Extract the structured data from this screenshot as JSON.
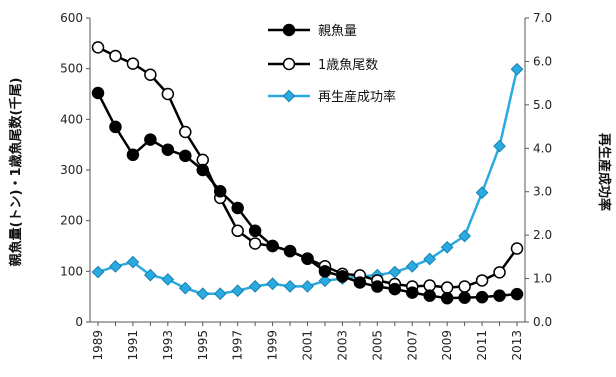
{
  "chart_data": {
    "type": "line",
    "title": "",
    "xlabel": "",
    "ylabel_left": "親魚量(トン)・1歳魚尾数(千尾)",
    "ylabel_right": "再生産成功率",
    "ylim_left": [
      0,
      600
    ],
    "ylim_right": [
      0.0,
      7.0
    ],
    "yticks_left": [
      "0",
      "100",
      "200",
      "300",
      "400",
      "500",
      "600"
    ],
    "yticks_right": [
      "0.0",
      "1.0",
      "2.0",
      "3.0",
      "4.0",
      "5.0",
      "6.0",
      "7.0"
    ],
    "x": [
      1989,
      1990,
      1991,
      1992,
      1993,
      1994,
      1995,
      1996,
      1997,
      1998,
      1999,
      2000,
      2001,
      2002,
      2003,
      2004,
      2005,
      2006,
      2007,
      2008,
      2009,
      2010,
      2011,
      2012,
      2013
    ],
    "xtick_labels": [
      "1989",
      "1991",
      "1993",
      "1995",
      "1997",
      "1999",
      "2001",
      "2003",
      "2005",
      "2007",
      "2009",
      "2011",
      "2013"
    ],
    "legend_position": "top-center",
    "grid": false,
    "series": [
      {
        "name": "親魚量",
        "axis": "left",
        "marker": "filled-circle",
        "color": "#000000",
        "values": [
          452,
          385,
          330,
          360,
          340,
          328,
          300,
          258,
          225,
          180,
          150,
          140,
          125,
          100,
          90,
          78,
          70,
          65,
          58,
          52,
          47,
          48,
          49,
          52,
          55
        ]
      },
      {
        "name": "1歳魚尾数",
        "axis": "left",
        "marker": "open-circle",
        "color": "#000000",
        "values": [
          542,
          525,
          510,
          488,
          450,
          375,
          320,
          245,
          180,
          155,
          150,
          140,
          125,
          110,
          95,
          92,
          82,
          75,
          70,
          72,
          68,
          70,
          82,
          98,
          145
        ]
      },
      {
        "name": "再生産成功率",
        "axis": "right",
        "marker": "diamond",
        "color": "#29abe2",
        "values": [
          1.15,
          1.28,
          1.38,
          1.08,
          0.98,
          0.78,
          0.65,
          0.65,
          0.72,
          0.82,
          0.88,
          0.82,
          0.82,
          0.95,
          1.0,
          1.05,
          1.08,
          1.15,
          1.28,
          1.45,
          1.72,
          1.98,
          2.98,
          4.05,
          5.82
        ]
      }
    ]
  }
}
